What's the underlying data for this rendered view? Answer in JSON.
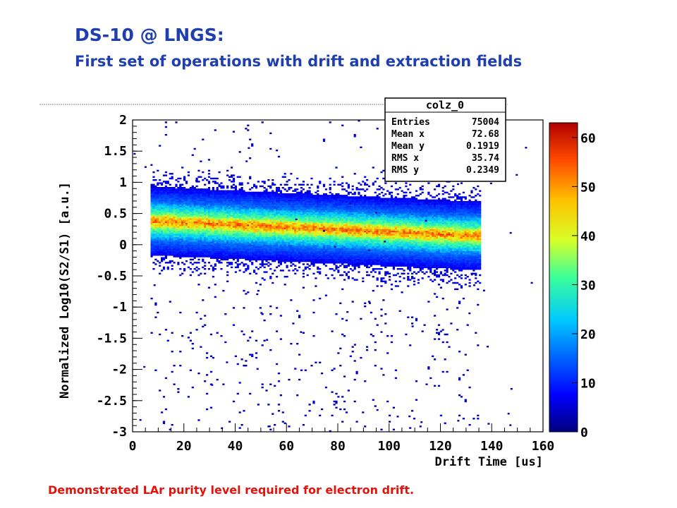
{
  "slide": {
    "title": "DS-10 @ LNGS:",
    "subtitle": "First set of operations with drift and extraction fields",
    "caption": "Demonstrated LAr purity level required for electron drift."
  },
  "chart_data": {
    "type": "heatmap",
    "title": "",
    "xlabel": "Drift Time [us]",
    "ylabel": "Normalized Log10(S2/S1) [a.u.]",
    "xlim": [
      0,
      160
    ],
    "ylim": [
      -3,
      2
    ],
    "xticks": [
      "0",
      "20",
      "40",
      "60",
      "80",
      "100",
      "120",
      "140",
      "160"
    ],
    "yticks": [
      "2",
      "1.5",
      "1",
      "0.5",
      "0",
      "-0.5",
      "-1",
      "-1.5",
      "-2",
      "-2.5",
      "-3"
    ],
    "colorbar": {
      "min": 0,
      "max": 63,
      "ticks": [
        "60",
        "50",
        "40",
        "30",
        "20",
        "10",
        "0"
      ]
    },
    "band": {
      "x_start": 7,
      "x_end": 135,
      "center_y_start": 0.38,
      "center_y_end": 0.14,
      "core_halfwidth": 0.1,
      "inner_halfwidth": 0.3,
      "outer_halfwidth": 0.55
    },
    "stats": {
      "name": "colz_0",
      "rows": [
        {
          "label": "Entries",
          "value": "75004"
        },
        {
          "label": "Mean x",
          "value": "72.68"
        },
        {
          "label": "Mean y",
          "value": "0.1919"
        },
        {
          "label": "RMS x",
          "value": "35.74"
        },
        {
          "label": "RMS y",
          "value": "0.2349"
        }
      ]
    }
  }
}
